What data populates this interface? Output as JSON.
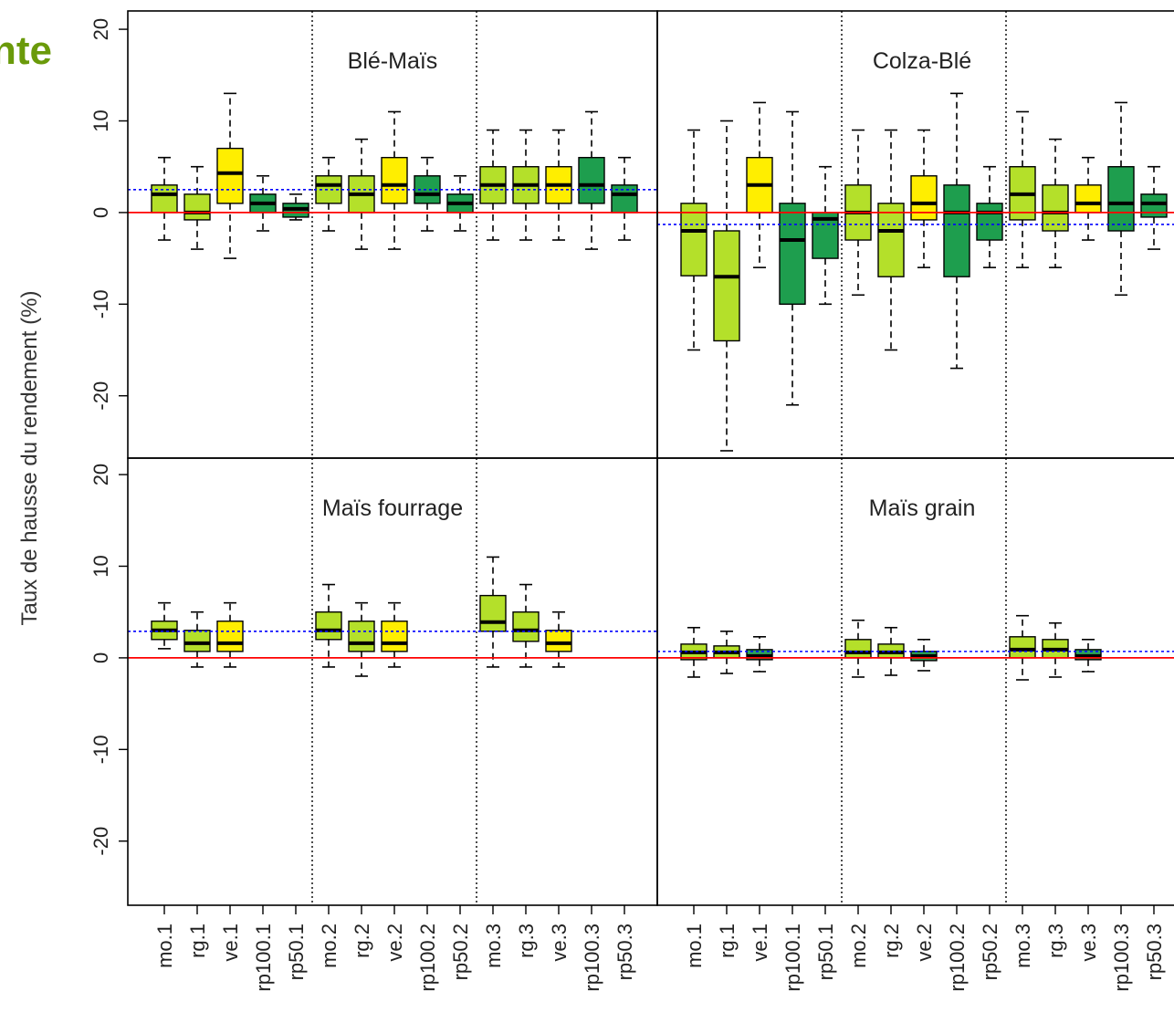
{
  "header": {
    "title": "nte"
  },
  "chart_data": [
    {
      "type": "boxplot",
      "title": "Blé-Maïs",
      "ylabel": "Taux de hausse du rendement (%)",
      "ylim": [
        -26.8,
        22
      ],
      "yticks": [
        -20,
        -10,
        0,
        10,
        20
      ],
      "ref_line": 0,
      "ref_color": "#ff0000",
      "mean_line": 2.5,
      "mean_color": "#0000ff",
      "colors": [
        "#b4e02a",
        "#b4e02a",
        "#ffee00",
        "#1e9e4e",
        "#1e9e4e",
        "#b4e02a",
        "#b4e02a",
        "#ffee00",
        "#1e9e4e",
        "#1e9e4e",
        "#b4e02a",
        "#b4e02a",
        "#ffee00",
        "#1e9e4e",
        "#1e9e4e"
      ],
      "whislo": [
        -3,
        -4,
        -5,
        -2,
        -0.8,
        -2,
        -4,
        -4,
        -2,
        -2,
        -3,
        -3,
        -3,
        -4,
        -3
      ],
      "q1": [
        0,
        -0.8,
        1,
        0,
        -0.5,
        1,
        0,
        1,
        1,
        0,
        1,
        1,
        1,
        1,
        0
      ],
      "med": [
        2,
        0,
        4.3,
        1,
        0.4,
        3,
        2,
        3,
        2,
        1,
        3,
        3,
        3,
        3,
        2
      ],
      "q3": [
        3,
        2,
        7,
        2,
        1,
        4,
        4,
        6,
        4,
        2,
        5,
        5,
        5,
        6,
        3
      ],
      "whishi": [
        6,
        5,
        13,
        4,
        2,
        6,
        8,
        11,
        6,
        4,
        9,
        9,
        9,
        11,
        6
      ]
    },
    {
      "type": "boxplot",
      "title": "Colza-Blé",
      "ylim": [
        -26.8,
        22
      ],
      "ref_line": 0,
      "ref_color": "#ff0000",
      "mean_line": -1.3,
      "mean_color": "#0000ff",
      "colors": [
        "#b4e02a",
        "#b4e02a",
        "#ffee00",
        "#1e9e4e",
        "#1e9e4e",
        "#b4e02a",
        "#b4e02a",
        "#ffee00",
        "#1e9e4e",
        "#1e9e4e",
        "#b4e02a",
        "#b4e02a",
        "#ffee00",
        "#1e9e4e",
        "#1e9e4e"
      ],
      "whislo": [
        -15,
        -26,
        -6,
        -21,
        -10,
        -9,
        -15,
        -6,
        -17,
        -6,
        -6,
        -6,
        -3,
        -9,
        -4
      ],
      "q1": [
        -6.9,
        -14,
        0,
        -10,
        -5,
        -3,
        -7,
        -0.8,
        -7,
        -3,
        -0.8,
        -2,
        0,
        -2,
        -0.5
      ],
      "med": [
        -2,
        -7,
        3,
        -3,
        -0.7,
        0,
        -2,
        1,
        0,
        0,
        2,
        0,
        1,
        1,
        1
      ],
      "q3": [
        1,
        -2,
        6,
        1,
        0,
        3,
        1,
        4,
        3,
        1,
        5,
        3,
        3,
        5,
        2
      ],
      "whishi": [
        9,
        10,
        12,
        11,
        5,
        9,
        9,
        9,
        13,
        5,
        11,
        8,
        6,
        12,
        5
      ]
    },
    {
      "type": "boxplot",
      "title": "Maïs fourrage",
      "ylim": [
        -27,
        21.8
      ],
      "yticks": [
        -20,
        -10,
        0,
        10,
        20
      ],
      "ref_line": 0,
      "ref_color": "#ff0000",
      "mean_line": 2.9,
      "mean_color": "#0000ff",
      "categories": [
        "mo.1",
        "rg.1",
        "ve.1",
        "rp100.1",
        "rp50.1",
        "mo.2",
        "rg.2",
        "ve.2",
        "rp100.2",
        "rp50.2",
        "mo.3",
        "rg.3",
        "ve.3",
        "rp100.3",
        "rp50.3"
      ],
      "colors": [
        "#b4e02a",
        "#b4e02a",
        "#ffee00",
        null,
        null,
        "#b4e02a",
        "#b4e02a",
        "#ffee00",
        null,
        null,
        "#b4e02a",
        "#b4e02a",
        "#ffee00",
        null,
        null
      ],
      "whislo": [
        1,
        -1,
        -1,
        null,
        null,
        -1,
        -2,
        -1,
        null,
        null,
        -1,
        -1,
        -1,
        null,
        null
      ],
      "q1": [
        2,
        0.7,
        0.7,
        null,
        null,
        2,
        0.7,
        0.7,
        null,
        null,
        2.9,
        1.8,
        0.7,
        null,
        null
      ],
      "med": [
        3,
        1.6,
        1.6,
        null,
        null,
        3,
        1.6,
        1.6,
        null,
        null,
        3.9,
        3,
        1.6,
        null,
        null
      ],
      "q3": [
        4,
        3,
        4,
        null,
        null,
        5,
        4,
        4,
        null,
        null,
        6.8,
        5,
        3,
        null,
        null
      ],
      "whishi": [
        6,
        5,
        6,
        null,
        null,
        8,
        6,
        6,
        null,
        null,
        11,
        8,
        5,
        null,
        null
      ]
    },
    {
      "type": "boxplot",
      "title": "Maïs grain",
      "ylim": [
        -27,
        21.8
      ],
      "ref_line": 0,
      "ref_color": "#ff0000",
      "mean_line": 0.7,
      "mean_color": "#0000ff",
      "categories": [
        "mo.1",
        "rg.1",
        "ve.1",
        "rp100.1",
        "rp50.1",
        "mo.2",
        "rg.2",
        "ve.2",
        "rp100.2",
        "rp50.2",
        "mo.3",
        "rg.3",
        "ve.3",
        "rp100.3",
        "rp50.3"
      ],
      "colors": [
        "#b4e02a",
        "#b4e02a",
        "#2ca55a",
        null,
        null,
        "#b4e02a",
        "#b4e02a",
        "#2ca55a",
        null,
        null,
        "#b4e02a",
        "#b4e02a",
        "#2ca55a",
        null,
        null
      ],
      "whislo": [
        -2.1,
        -1.7,
        -1.5,
        null,
        null,
        -2.1,
        -1.9,
        -1.4,
        null,
        null,
        -2.4,
        -2.1,
        -1.5,
        null,
        null
      ],
      "q1": [
        -0.2,
        0,
        -0.2,
        null,
        null,
        0,
        0,
        -0.3,
        null,
        null,
        0,
        0,
        -0.2,
        null,
        null
      ],
      "med": [
        0.6,
        0.6,
        0.2,
        null,
        null,
        0.6,
        0.6,
        0.2,
        null,
        null,
        0.9,
        0.9,
        0.2,
        null,
        null
      ],
      "q3": [
        1.5,
        1.3,
        0.9,
        null,
        null,
        2,
        1.5,
        0.7,
        null,
        null,
        2.3,
        2,
        0.9,
        null,
        null
      ],
      "whishi": [
        3.3,
        2.9,
        2.3,
        null,
        null,
        4.1,
        3.3,
        2,
        null,
        null,
        4.6,
        3.8,
        2,
        null,
        null
      ]
    }
  ]
}
